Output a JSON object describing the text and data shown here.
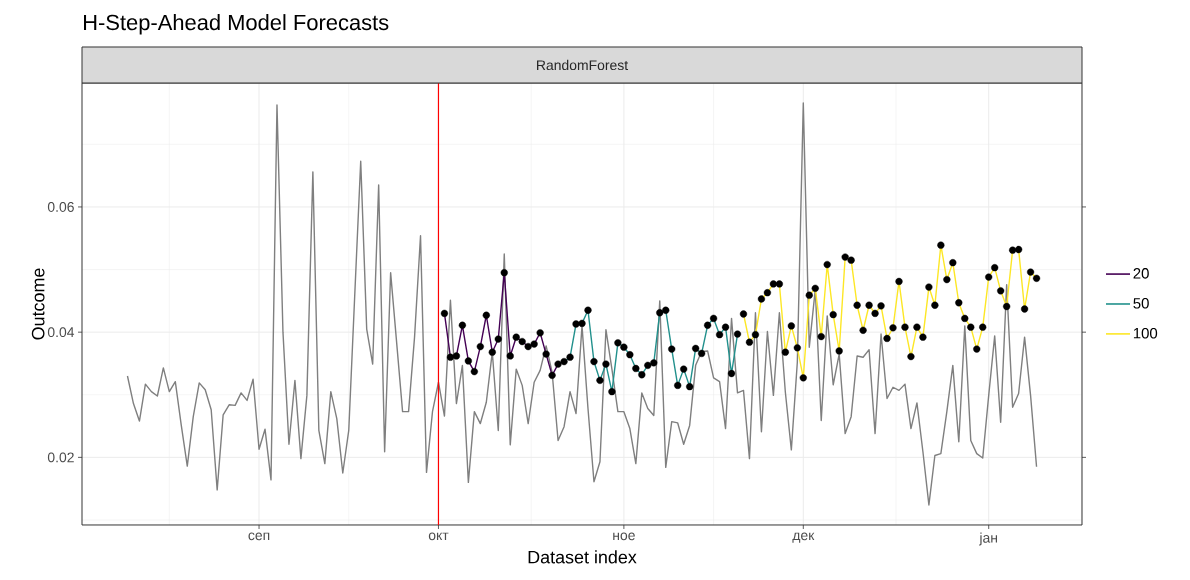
{
  "chart_data": {
    "type": "line",
    "title": "H-Step-Ahead Model Forecasts",
    "subtitle": "RandomForest",
    "xlabel": "Dataset index",
    "ylabel": "Outcome",
    "categories": [
      null,
      null,
      null,
      null,
      null,
      null,
      null,
      null,
      null,
      null,
      null,
      null,
      null,
      null,
      null,
      null,
      null,
      null,
      null,
      null,
      null,
      null,
      "сеп",
      null,
      null,
      null,
      null,
      null,
      null,
      null,
      null,
      null,
      null,
      null,
      null,
      null,
      null,
      null,
      null,
      null,
      null,
      null,
      null,
      null,
      null,
      null,
      null,
      null,
      null,
      null,
      null,
      null,
      "окт",
      null,
      null,
      null,
      null,
      null,
      null,
      null,
      null,
      null,
      null,
      null,
      null,
      null,
      null,
      null,
      null,
      null,
      null,
      null,
      null,
      null,
      null,
      null,
      null,
      null,
      null,
      null,
      null,
      null,
      null,
      "ное",
      null,
      null,
      null,
      null,
      null,
      null,
      null,
      null,
      null,
      null,
      null,
      null,
      null,
      null,
      null,
      null,
      null,
      null,
      null,
      null,
      null,
      null,
      null,
      null,
      null,
      null,
      null,
      null,
      null,
      "дек",
      null,
      null,
      null,
      null,
      null,
      null,
      null,
      null,
      null,
      null,
      null,
      null,
      null,
      null,
      null,
      null,
      null,
      null,
      null,
      null,
      null,
      null,
      null,
      null,
      null,
      null,
      null,
      null,
      null,
      null,
      "јан",
      null,
      null,
      null,
      null,
      null,
      null,
      null,
      null
    ],
    "ylim": [
      0.0092,
      0.0798
    ],
    "yticks": [
      0.02,
      0.04,
      0.06
    ],
    "grid": true,
    "legend": "right",
    "ref_lines": [
      {
        "axis": "x",
        "value": "окт",
        "color": "#ff0000"
      }
    ],
    "series": [
      {
        "color": "#7f7f7f",
        "values": [
          0.033,
          0.0286,
          0.0258,
          0.0317,
          0.0305,
          0.0298,
          0.0343,
          0.0305,
          0.0321,
          0.0251,
          0.0186,
          0.0265,
          0.0319,
          0.0308,
          0.0276,
          0.0148,
          0.0268,
          0.0284,
          0.0283,
          0.0303,
          0.0291,
          0.0325,
          0.0213,
          0.0245,
          0.0164,
          0.0763,
          0.04,
          0.0221,
          0.0323,
          0.0198,
          0.0299,
          0.0656,
          0.0243,
          0.019,
          0.0305,
          0.0262,
          0.0175,
          0.0243,
          0.0459,
          0.0673,
          0.0405,
          0.0349,
          0.0635,
          0.0209,
          0.0495,
          0.0384,
          0.0273,
          0.0273,
          0.0392,
          0.0554,
          0.0176,
          0.0273,
          0.032,
          0.0266,
          0.0451,
          0.0286,
          0.0347,
          0.016,
          0.0273,
          0.0254,
          0.0288,
          0.0368,
          0.0243,
          0.0525,
          0.022,
          0.0341,
          0.0315,
          0.0254,
          0.032,
          0.0339,
          0.0378,
          0.0336,
          0.0227,
          0.0249,
          0.0305,
          0.027,
          0.041,
          0.0278,
          0.0161,
          0.0193,
          0.0404,
          0.0341,
          0.0273,
          0.0273,
          0.0246,
          0.019,
          0.0303,
          0.0278,
          0.0267,
          0.045,
          0.0184,
          0.0257,
          0.0255,
          0.0221,
          0.0251,
          0.0347,
          0.0369,
          0.037,
          0.0327,
          0.0321,
          0.0246,
          0.0422,
          0.0303,
          0.0307,
          0.0198,
          0.0431,
          0.0241,
          0.0401,
          0.0299,
          0.0431,
          0.0304,
          0.0212,
          0.0352,
          0.0766,
          0.0376,
          0.0468,
          0.0259,
          0.0426,
          0.0316,
          0.0365,
          0.0238,
          0.0265,
          0.0362,
          0.036,
          0.0372,
          0.0238,
          0.0397,
          0.0294,
          0.0312,
          0.0307,
          0.0317,
          0.0246,
          0.0287,
          0.0209,
          0.0124,
          0.0203,
          0.0206,
          0.0273,
          0.0347,
          0.0225,
          0.041,
          0.0227,
          0.0206,
          0.0199,
          0.0299,
          0.0394,
          0.0256,
          0.0476,
          0.028,
          0.0302,
          0.0392,
          0.0299,
          0.0185
        ]
      },
      {
        "name": "20",
        "color": "#440154",
        "values": [
          null,
          null,
          null,
          null,
          null,
          null,
          null,
          null,
          null,
          null,
          null,
          null,
          null,
          null,
          null,
          null,
          null,
          null,
          null,
          null,
          null,
          null,
          null,
          null,
          null,
          null,
          null,
          null,
          null,
          null,
          null,
          null,
          null,
          null,
          null,
          null,
          null,
          null,
          null,
          null,
          null,
          null,
          null,
          null,
          null,
          null,
          null,
          null,
          null,
          null,
          null,
          null,
          null,
          0.043,
          0.036,
          0.0362,
          0.0411,
          0.0354,
          0.0337,
          0.0377,
          0.0427,
          0.0368,
          0.0389,
          0.0495,
          0.0362,
          0.0392,
          0.0385,
          0.0377,
          0.0381,
          0.0399,
          0.0365,
          0.0331,
          0.0349,
          null,
          null,
          null,
          null,
          null,
          null,
          null,
          null,
          null,
          null,
          null,
          null,
          null,
          null,
          null,
          null,
          null,
          null,
          null,
          null,
          null,
          null,
          null,
          null,
          null,
          null,
          null,
          null,
          null,
          null,
          null,
          null,
          null,
          null,
          null,
          null,
          null,
          null,
          null,
          null,
          null,
          null,
          null,
          null,
          null,
          null,
          null,
          null,
          null,
          null,
          null,
          null,
          null,
          null,
          null,
          null,
          null,
          null,
          null,
          null,
          null,
          null,
          null,
          null,
          null,
          null,
          null,
          null,
          null,
          null,
          null,
          null,
          null,
          null,
          null,
          null,
          null,
          null,
          null,
          null
        ]
      },
      {
        "name": "50",
        "color": "#21908c",
        "values": [
          null,
          null,
          null,
          null,
          null,
          null,
          null,
          null,
          null,
          null,
          null,
          null,
          null,
          null,
          null,
          null,
          null,
          null,
          null,
          null,
          null,
          null,
          null,
          null,
          null,
          null,
          null,
          null,
          null,
          null,
          null,
          null,
          null,
          null,
          null,
          null,
          null,
          null,
          null,
          null,
          null,
          null,
          null,
          null,
          null,
          null,
          null,
          null,
          null,
          null,
          null,
          null,
          null,
          null,
          null,
          null,
          null,
          null,
          null,
          null,
          null,
          null,
          null,
          null,
          null,
          null,
          null,
          null,
          null,
          null,
          null,
          null,
          null,
          0.0353,
          0.036,
          0.0413,
          0.0414,
          0.0435,
          0.0353,
          0.0323,
          0.0349,
          0.0305,
          0.0383,
          0.0376,
          0.0364,
          0.0342,
          0.0332,
          0.0347,
          0.0351,
          0.0431,
          0.0435,
          0.0373,
          0.0315,
          0.0341,
          0.0313,
          0.0374,
          0.0366,
          0.0411,
          0.0422,
          0.0396,
          0.0408,
          0.0334,
          0.0397,
          null,
          null,
          null,
          null,
          null,
          null,
          null,
          null,
          null,
          null,
          null,
          null,
          null,
          null,
          null,
          null,
          null,
          null,
          null,
          null,
          null,
          null,
          null,
          null,
          null,
          null,
          null,
          null,
          null,
          null,
          null,
          null,
          null,
          null,
          null,
          null,
          null,
          null,
          null,
          null,
          null,
          null,
          null,
          null,
          null,
          null,
          null,
          null,
          null,
          null
        ]
      },
      {
        "name": "100",
        "color": "#fde725",
        "values": [
          null,
          null,
          null,
          null,
          null,
          null,
          null,
          null,
          null,
          null,
          null,
          null,
          null,
          null,
          null,
          null,
          null,
          null,
          null,
          null,
          null,
          null,
          null,
          null,
          null,
          null,
          null,
          null,
          null,
          null,
          null,
          null,
          null,
          null,
          null,
          null,
          null,
          null,
          null,
          null,
          null,
          null,
          null,
          null,
          null,
          null,
          null,
          null,
          null,
          null,
          null,
          null,
          null,
          null,
          null,
          null,
          null,
          null,
          null,
          null,
          null,
          null,
          null,
          null,
          null,
          null,
          null,
          null,
          null,
          null,
          null,
          null,
          null,
          null,
          null,
          null,
          null,
          null,
          null,
          null,
          null,
          null,
          null,
          null,
          null,
          null,
          null,
          null,
          null,
          null,
          null,
          null,
          null,
          null,
          null,
          null,
          null,
          null,
          null,
          null,
          null,
          null,
          null,
          0.0429,
          0.0384,
          0.0396,
          0.0453,
          0.0463,
          0.0477,
          0.0477,
          0.0368,
          0.041,
          0.0375,
          0.0327,
          0.0459,
          0.047,
          0.0393,
          0.0508,
          0.0428,
          0.037,
          0.052,
          0.0515,
          0.0443,
          0.0403,
          0.0443,
          0.043,
          0.0442,
          0.039,
          0.0407,
          0.0481,
          0.0408,
          0.0361,
          0.0408,
          0.0392,
          0.0472,
          0.0443,
          0.0539,
          0.0484,
          0.0511,
          0.0447,
          0.0422,
          0.0408,
          0.0373,
          0.0408,
          0.0488,
          0.0503,
          0.0466,
          0.0441,
          0.0531,
          0.0532,
          0.0437,
          0.0496,
          0.0486
        ]
      },
      {
        "type": "scatter",
        "color": "#000000",
        "values": [
          null,
          null,
          null,
          null,
          null,
          null,
          null,
          null,
          null,
          null,
          null,
          null,
          null,
          null,
          null,
          null,
          null,
          null,
          null,
          null,
          null,
          null,
          null,
          null,
          null,
          null,
          null,
          null,
          null,
          null,
          null,
          null,
          null,
          null,
          null,
          null,
          null,
          null,
          null,
          null,
          null,
          null,
          null,
          null,
          null,
          null,
          null,
          null,
          null,
          null,
          null,
          null,
          null,
          0.043,
          0.036,
          0.0362,
          0.0411,
          0.0354,
          0.0337,
          0.0377,
          0.0427,
          0.0368,
          0.0389,
          0.0495,
          0.0362,
          0.0392,
          0.0385,
          0.0377,
          0.0381,
          0.0399,
          0.0365,
          0.0331,
          0.0349,
          0.0353,
          0.036,
          0.0413,
          0.0414,
          0.0435,
          0.0353,
          0.0323,
          0.0349,
          0.0305,
          0.0383,
          0.0376,
          0.0364,
          0.0342,
          0.0332,
          0.0347,
          0.0351,
          0.0431,
          0.0435,
          0.0373,
          0.0315,
          0.0341,
          0.0313,
          0.0374,
          0.0366,
          0.0411,
          0.0422,
          0.0396,
          0.0408,
          0.0334,
          0.0397,
          0.0429,
          0.0384,
          0.0396,
          0.0453,
          0.0463,
          0.0477,
          0.0477,
          0.0368,
          0.041,
          0.0375,
          0.0327,
          0.0459,
          0.047,
          0.0393,
          0.0508,
          0.0428,
          0.037,
          0.052,
          0.0515,
          0.0443,
          0.0403,
          0.0443,
          0.043,
          0.0442,
          0.039,
          0.0407,
          0.0481,
          0.0408,
          0.0361,
          0.0408,
          0.0392,
          0.0472,
          0.0443,
          0.0539,
          0.0484,
          0.0511,
          0.0447,
          0.0422,
          0.0408,
          0.0373,
          0.0408,
          0.0488,
          0.0503,
          0.0466,
          0.0441,
          0.0531,
          0.0532,
          0.0437,
          0.0496,
          0.0486
        ]
      }
    ]
  }
}
